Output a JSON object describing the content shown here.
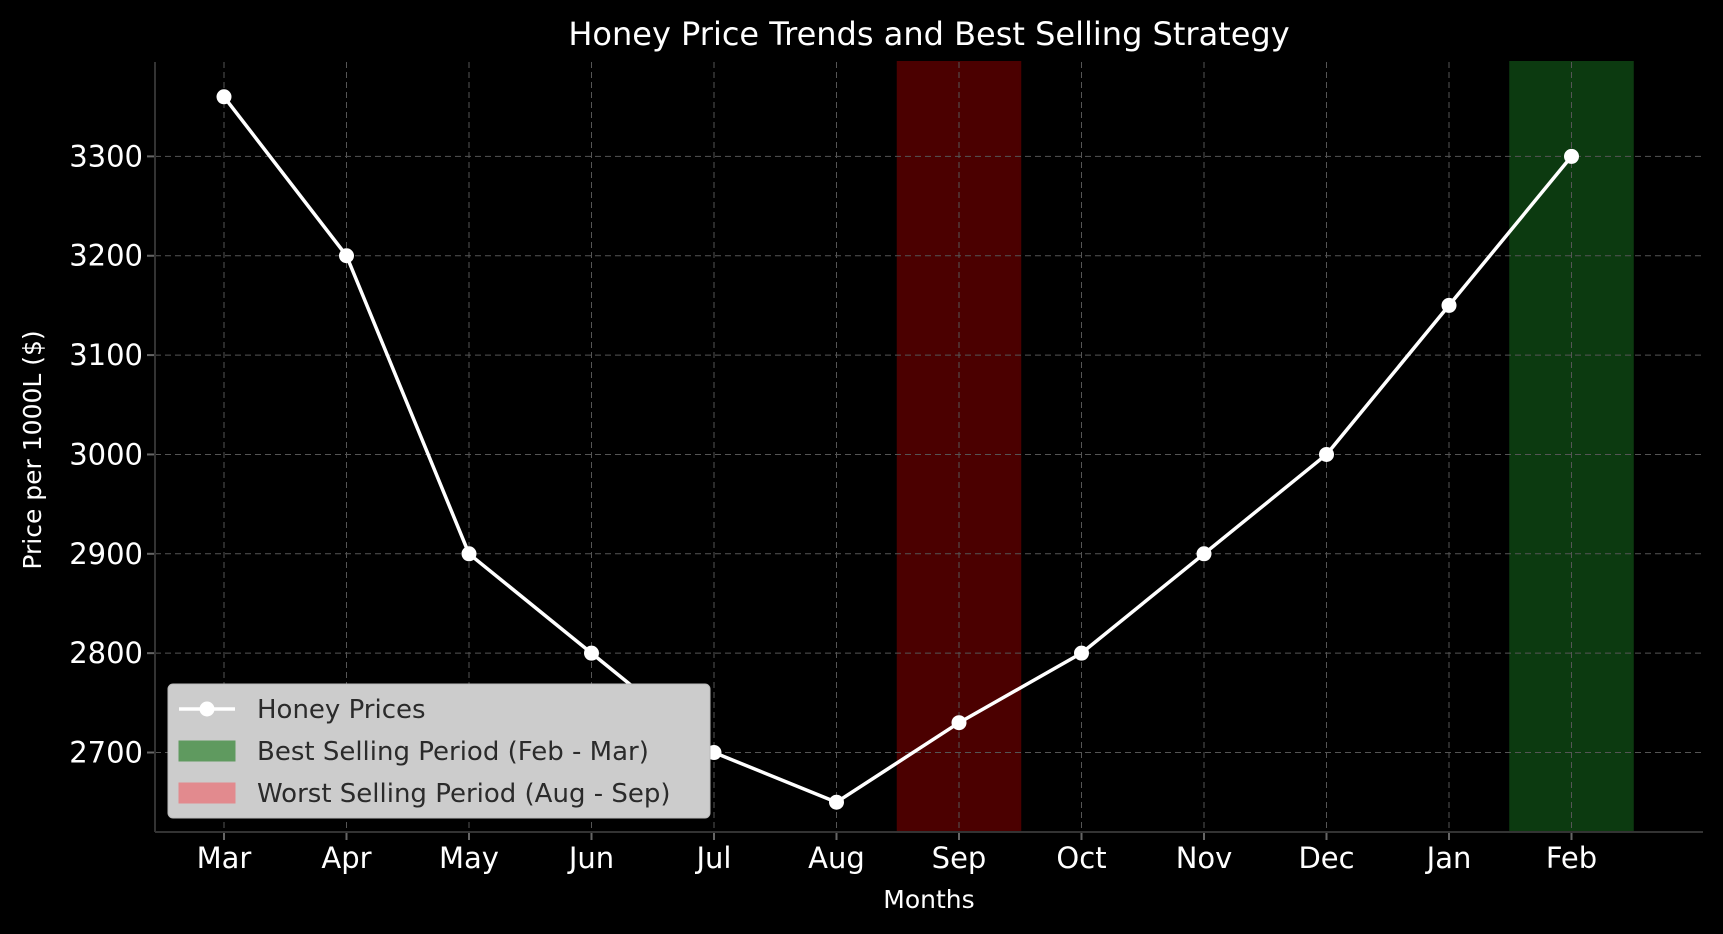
{
  "chart_data": {
    "type": "line",
    "title": "Honey Price Trends and Best Selling Strategy",
    "xlabel": "Months",
    "ylabel": "Price per 1000L ($)",
    "categories": [
      "Mar",
      "Apr",
      "May",
      "Jun",
      "Jul",
      "Aug",
      "Sep",
      "Oct",
      "Nov",
      "Dec",
      "Jan",
      "Feb"
    ],
    "series": [
      {
        "name": "Honey Prices",
        "values": [
          3360,
          3200,
          2900,
          2800,
          2700,
          2650,
          2730,
          2800,
          2900,
          3000,
          3150,
          3300
        ],
        "color": "#ffffff"
      }
    ],
    "ylim": [
      2620,
      3395
    ],
    "yticks": [
      2700,
      2800,
      2900,
      3000,
      3100,
      3200,
      3300
    ],
    "shaded_regions": [
      {
        "label": "Best Selling Period (Feb - Mar)",
        "from_index": 10.5,
        "to_index": 11.5,
        "color": "#0c3a10",
        "legend_color": "#5f9a5f"
      },
      {
        "label": "Worst Selling Period (Aug - Sep)",
        "from_index": 5.5,
        "to_index": 6.5,
        "color": "#4b0000",
        "legend_color": "#e28a8e"
      }
    ],
    "grid": true,
    "legend_position": "lower-left",
    "background": "#000000"
  }
}
